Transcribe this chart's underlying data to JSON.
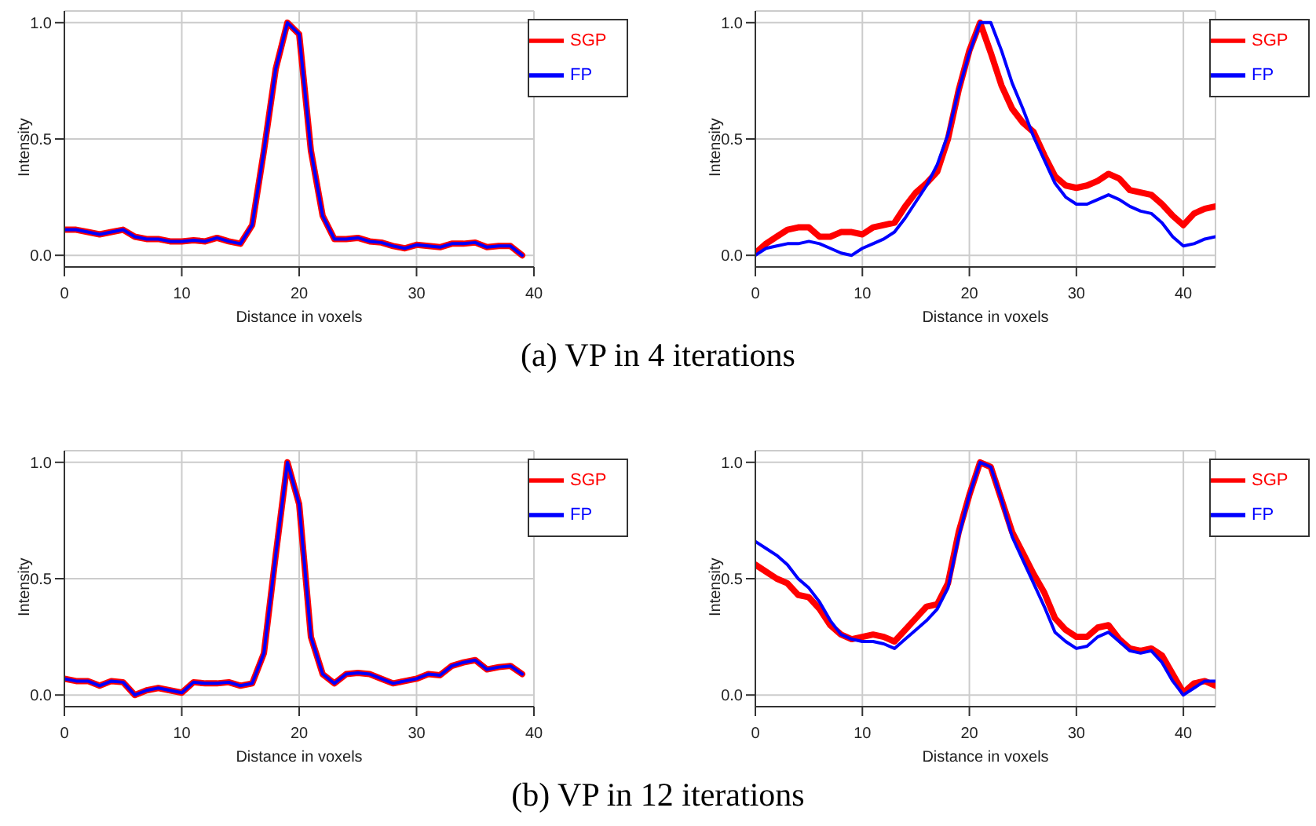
{
  "chart_data": [
    {
      "type": "line",
      "xlabel": "Distance in voxels",
      "ylabel": "Intensity",
      "annotations": [
        "(a) VP in 4 iterations"
      ],
      "x": [
        0,
        1,
        2,
        3,
        4,
        5,
        6,
        7,
        8,
        9,
        10,
        11,
        12,
        13,
        14,
        15,
        16,
        17,
        18,
        19,
        20,
        21,
        22,
        23,
        24,
        25,
        26,
        27,
        28,
        29,
        30,
        31,
        32,
        33,
        34,
        35,
        36,
        37,
        38,
        39
      ],
      "xlim": [
        0,
        40
      ],
      "xticks": [
        0,
        10,
        20,
        30,
        40
      ],
      "ylim": [
        -0.05,
        1.05
      ],
      "yticks": [
        {
          "value": 0,
          "label": "0.0"
        },
        {
          "value": 0.5,
          "label": "0.5"
        },
        {
          "value": 1,
          "label": "1.0"
        }
      ],
      "grid": true,
      "legend": "top right",
      "series": [
        {
          "name": "SGP",
          "color": "#ff0000",
          "values": [
            0.11,
            0.11,
            0.1,
            0.09,
            0.1,
            0.11,
            0.08,
            0.07,
            0.07,
            0.06,
            0.06,
            0.065,
            0.06,
            0.075,
            0.06,
            0.05,
            0.13,
            0.45,
            0.8,
            1.0,
            0.95,
            0.45,
            0.17,
            0.07,
            0.07,
            0.075,
            0.06,
            0.055,
            0.04,
            0.03,
            0.045,
            0.04,
            0.035,
            0.05,
            0.05,
            0.055,
            0.035,
            0.04,
            0.04,
            0.0
          ]
        },
        {
          "name": "FP",
          "color": "#0000ff",
          "values": [
            0.11,
            0.11,
            0.1,
            0.09,
            0.1,
            0.11,
            0.08,
            0.07,
            0.07,
            0.06,
            0.06,
            0.065,
            0.06,
            0.075,
            0.06,
            0.05,
            0.13,
            0.45,
            0.8,
            1.0,
            0.95,
            0.45,
            0.17,
            0.07,
            0.07,
            0.075,
            0.06,
            0.055,
            0.04,
            0.03,
            0.045,
            0.04,
            0.035,
            0.05,
            0.05,
            0.055,
            0.035,
            0.04,
            0.04,
            0.0
          ]
        }
      ]
    },
    {
      "type": "line",
      "xlabel": "Distance in voxels",
      "ylabel": "Intensity",
      "x": [
        0,
        1,
        2,
        3,
        4,
        5,
        6,
        7,
        8,
        9,
        10,
        11,
        12,
        13,
        14,
        15,
        16,
        17,
        18,
        19,
        20,
        21,
        22,
        23,
        24,
        25,
        26,
        27,
        28,
        29,
        30,
        31,
        32,
        33,
        34,
        35,
        36,
        37,
        38,
        39,
        40,
        41,
        42,
        43
      ],
      "xlim": [
        0,
        43
      ],
      "xticks": [
        0,
        10,
        20,
        30,
        40
      ],
      "ylim": [
        -0.05,
        1.05
      ],
      "yticks": [
        {
          "value": 0,
          "label": "0.0"
        },
        {
          "value": 0.5,
          "label": "0.5"
        },
        {
          "value": 1,
          "label": "1.0"
        }
      ],
      "grid": true,
      "legend": "top right",
      "series": [
        {
          "name": "SGP",
          "color": "#ff0000",
          "values": [
            0.01,
            0.05,
            0.08,
            0.11,
            0.12,
            0.12,
            0.08,
            0.08,
            0.1,
            0.1,
            0.09,
            0.12,
            0.13,
            0.14,
            0.21,
            0.27,
            0.31,
            0.36,
            0.5,
            0.71,
            0.88,
            1.0,
            0.87,
            0.73,
            0.63,
            0.57,
            0.53,
            0.43,
            0.34,
            0.3,
            0.29,
            0.3,
            0.32,
            0.35,
            0.33,
            0.28,
            0.27,
            0.26,
            0.22,
            0.17,
            0.13,
            0.18,
            0.2,
            0.21
          ]
        },
        {
          "name": "FP",
          "color": "#0000ff",
          "values": [
            0.0,
            0.03,
            0.04,
            0.05,
            0.05,
            0.06,
            0.05,
            0.03,
            0.01,
            0.0,
            0.03,
            0.05,
            0.07,
            0.1,
            0.16,
            0.23,
            0.3,
            0.39,
            0.52,
            0.71,
            0.87,
            1.0,
            1.0,
            0.88,
            0.74,
            0.63,
            0.51,
            0.41,
            0.31,
            0.25,
            0.22,
            0.22,
            0.24,
            0.26,
            0.24,
            0.21,
            0.19,
            0.18,
            0.14,
            0.08,
            0.04,
            0.05,
            0.07,
            0.08
          ]
        }
      ]
    },
    {
      "type": "line",
      "xlabel": "Distance in voxels",
      "ylabel": "Intensity",
      "annotations": [
        "(b) VP in 12 iterations"
      ],
      "x": [
        0,
        1,
        2,
        3,
        4,
        5,
        6,
        7,
        8,
        9,
        10,
        11,
        12,
        13,
        14,
        15,
        16,
        17,
        18,
        19,
        20,
        21,
        22,
        23,
        24,
        25,
        26,
        27,
        28,
        29,
        30,
        31,
        32,
        33,
        34,
        35,
        36,
        37,
        38,
        39
      ],
      "xlim": [
        0,
        40
      ],
      "xticks": [
        0,
        10,
        20,
        30,
        40
      ],
      "ylim": [
        -0.05,
        1.05
      ],
      "yticks": [
        {
          "value": 0,
          "label": "0.0"
        },
        {
          "value": 0.5,
          "label": "0.5"
        },
        {
          "value": 1,
          "label": "1.0"
        }
      ],
      "grid": true,
      "legend": "top right",
      "series": [
        {
          "name": "SGP",
          "color": "#ff0000",
          "values": [
            0.07,
            0.06,
            0.06,
            0.04,
            0.06,
            0.055,
            0.0,
            0.02,
            0.03,
            0.02,
            0.01,
            0.055,
            0.05,
            0.05,
            0.055,
            0.04,
            0.05,
            0.18,
            0.6,
            1.0,
            0.82,
            0.25,
            0.09,
            0.05,
            0.09,
            0.095,
            0.09,
            0.07,
            0.05,
            0.06,
            0.07,
            0.09,
            0.085,
            0.125,
            0.14,
            0.15,
            0.11,
            0.12,
            0.125,
            0.09
          ]
        },
        {
          "name": "FP",
          "color": "#0000ff",
          "values": [
            0.07,
            0.06,
            0.06,
            0.04,
            0.06,
            0.055,
            0.0,
            0.02,
            0.03,
            0.02,
            0.01,
            0.055,
            0.05,
            0.05,
            0.055,
            0.04,
            0.05,
            0.18,
            0.6,
            1.0,
            0.82,
            0.25,
            0.09,
            0.05,
            0.09,
            0.095,
            0.09,
            0.07,
            0.05,
            0.06,
            0.07,
            0.09,
            0.085,
            0.125,
            0.14,
            0.15,
            0.11,
            0.12,
            0.125,
            0.09
          ]
        }
      ]
    },
    {
      "type": "line",
      "xlabel": "Distance in voxels",
      "ylabel": "Intensity",
      "x": [
        0,
        1,
        2,
        3,
        4,
        5,
        6,
        7,
        8,
        9,
        10,
        11,
        12,
        13,
        14,
        15,
        16,
        17,
        18,
        19,
        20,
        21,
        22,
        23,
        24,
        25,
        26,
        27,
        28,
        29,
        30,
        31,
        32,
        33,
        34,
        35,
        36,
        37,
        38,
        39,
        40,
        41,
        42,
        43
      ],
      "xlim": [
        0,
        43
      ],
      "xticks": [
        0,
        10,
        20,
        30,
        40
      ],
      "ylim": [
        -0.05,
        1.05
      ],
      "yticks": [
        {
          "value": 0,
          "label": "0.0"
        },
        {
          "value": 0.5,
          "label": "0.5"
        },
        {
          "value": 1,
          "label": "1.0"
        }
      ],
      "grid": true,
      "legend": "top right",
      "series": [
        {
          "name": "SGP",
          "color": "#ff0000",
          "values": [
            0.56,
            0.53,
            0.5,
            0.48,
            0.43,
            0.42,
            0.37,
            0.3,
            0.26,
            0.24,
            0.25,
            0.26,
            0.25,
            0.23,
            0.28,
            0.33,
            0.38,
            0.39,
            0.48,
            0.7,
            0.86,
            1.0,
            0.98,
            0.84,
            0.7,
            0.61,
            0.52,
            0.44,
            0.33,
            0.28,
            0.25,
            0.25,
            0.29,
            0.3,
            0.24,
            0.2,
            0.19,
            0.2,
            0.17,
            0.09,
            0.01,
            0.05,
            0.06,
            0.04
          ]
        },
        {
          "name": "FP",
          "color": "#0000ff",
          "values": [
            0.66,
            0.63,
            0.6,
            0.56,
            0.5,
            0.46,
            0.4,
            0.32,
            0.26,
            0.24,
            0.23,
            0.23,
            0.22,
            0.2,
            0.24,
            0.28,
            0.32,
            0.37,
            0.46,
            0.68,
            0.86,
            1.0,
            0.98,
            0.84,
            0.68,
            0.58,
            0.48,
            0.38,
            0.27,
            0.23,
            0.2,
            0.21,
            0.25,
            0.27,
            0.23,
            0.19,
            0.18,
            0.19,
            0.14,
            0.06,
            0.0,
            0.03,
            0.06,
            0.06
          ]
        }
      ]
    }
  ]
}
